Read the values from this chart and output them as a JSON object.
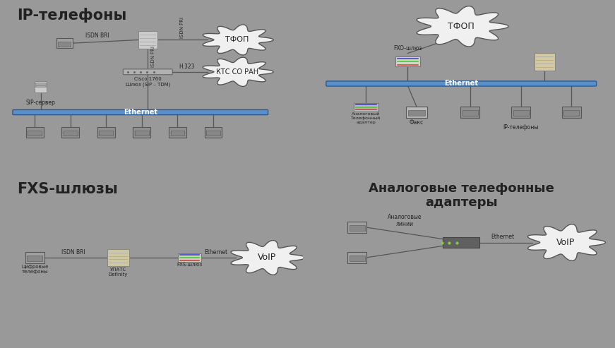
{
  "bg_top_left": "#dce9f5",
  "bg_top_right": "#cccfe0",
  "bg_bot_left": "#f5e8cc",
  "bg_bot_right": "#d8ddb8",
  "border_color": "#666666",
  "fig_bg": "#999999",
  "panel_titles": {
    "top_left": "IP-телефоны",
    "bot_left": "FXS-шлюзы",
    "bot_right": "Аналоговые телефонные\nадаптеры"
  },
  "labels": {
    "tfop": "ТФОП",
    "ethernet": "Ethernet",
    "voip": "VoIP",
    "isdn_bri": "ISDN BRI",
    "isdn_pri_h": "ISDN PRI",
    "isdn_pri_v": "ISDN PRI",
    "h323": "H.323",
    "kts": "КТС СО РАН",
    "cisco": "Cisco 1760\nШлюз (SIP – TDM)",
    "sip_server": "SIP-сервер",
    "fxo_gateway": "FXO-шлюз",
    "analog_adapter": "Аналоговый\nТелефонный\nадаптер",
    "ip_phones": "IP-телефоны",
    "fax": "Факс",
    "digital_phones": "Цифровые\nтелефоны",
    "upatc": "УПАТС\nDefinity",
    "fxs_gateway": "FXS-шлюз",
    "analog_lines": "Аналоговые\nлинии",
    "ethernet2": "Ethernet"
  },
  "ethernet_color": "#5b8fc9",
  "cloud_fill": "#f0f0f0",
  "cloud_ec": "#555555",
  "line_color": "#555555",
  "server_fill": "#d4c9a0",
  "device_fill": "#b8b8b8",
  "title_color": "#111111",
  "voip_cloud_fill": "#f0f0f0"
}
